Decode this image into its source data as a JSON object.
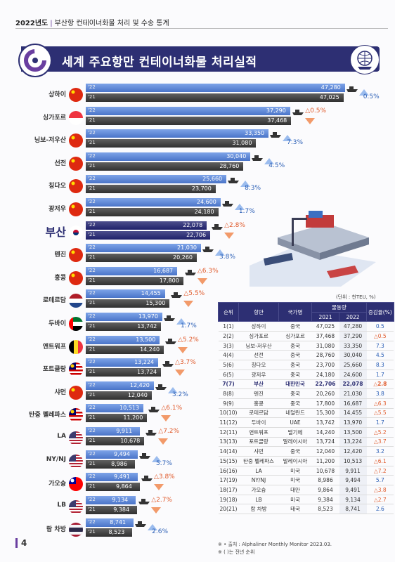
{
  "header": {
    "year": "2022년도",
    "subtitle": "부산항 컨테이너화물 처리 및 수송 통계"
  },
  "chart_data": {
    "type": "bar",
    "title": "세계 주요항만 컨테이너화물 처리실적",
    "series_labels": {
      "y22": "'22",
      "y21": "'21"
    },
    "xlim": [
      0,
      50000
    ],
    "ports": [
      {
        "name": "상하이",
        "v22": 47280,
        "v21": 47025,
        "d22": "47,280",
        "d21": "47,025",
        "change": "0.5%",
        "dir": "up",
        "flag": "cn"
      },
      {
        "name": "싱가포르",
        "v22": 37290,
        "v21": 37468,
        "d22": "37,290",
        "d21": "37,468",
        "change": "△0.5%",
        "dir": "down",
        "flag": "sg"
      },
      {
        "name": "닝보-저우산",
        "v22": 33350,
        "v21": 31080,
        "d22": "33,350",
        "d21": "31,080",
        "change": "7.3%",
        "dir": "up",
        "flag": "cn"
      },
      {
        "name": "선전",
        "v22": 30040,
        "v21": 28760,
        "d22": "30,040",
        "d21": "28,760",
        "change": "4.5%",
        "dir": "up",
        "flag": "cn"
      },
      {
        "name": "칭다오",
        "v22": 25660,
        "v21": 23700,
        "d22": "25,660",
        "d21": "23,700",
        "change": "8.3%",
        "dir": "up",
        "flag": "cn"
      },
      {
        "name": "광저우",
        "v22": 24600,
        "v21": 24180,
        "d22": "24,600",
        "d21": "24,180",
        "change": "1.7%",
        "dir": "up",
        "flag": "cn"
      },
      {
        "name": "부산",
        "v22": 22078,
        "v21": 22706,
        "d22": "22,078",
        "d21": "22,706",
        "change": "△2.8%",
        "dir": "down",
        "flag": "kr",
        "highlight": true
      },
      {
        "name": "톈진",
        "v22": 21030,
        "v21": 20260,
        "d22": "21,030",
        "d21": "20,260",
        "change": "3.8%",
        "dir": "up",
        "flag": "cn"
      },
      {
        "name": "홍콩",
        "v22": 16687,
        "v21": 17800,
        "d22": "16,687",
        "d21": "17,800",
        "change": "△6.3%",
        "dir": "down",
        "flag": "cn"
      },
      {
        "name": "로테르담",
        "v22": 14455,
        "v21": 15300,
        "d22": "14,455",
        "d21": "15,300",
        "change": "△5.5%",
        "dir": "down",
        "flag": "nl"
      },
      {
        "name": "두바이",
        "v22": 13970,
        "v21": 13742,
        "d22": "13,970",
        "d21": "13,742",
        "change": "1.7%",
        "dir": "up",
        "flag": "ae"
      },
      {
        "name": "앤트워프",
        "v22": 13500,
        "v21": 14240,
        "d22": "13,500",
        "d21": "14,240",
        "change": "△5.2%",
        "dir": "down",
        "flag": "be"
      },
      {
        "name": "포트클랑",
        "v22": 13224,
        "v21": 13724,
        "d22": "13,224",
        "d21": "13,724",
        "change": "△3.7%",
        "dir": "down",
        "flag": "my"
      },
      {
        "name": "샤먼",
        "v22": 12420,
        "v21": 12040,
        "d22": "12,420",
        "d21": "12,040",
        "change": "3.2%",
        "dir": "up",
        "flag": "cn"
      },
      {
        "name": "탄중 펠레파스",
        "v22": 10513,
        "v21": 11200,
        "d22": "10,513",
        "d21": "11,200",
        "change": "△6.1%",
        "dir": "down",
        "flag": "my"
      },
      {
        "name": "LA",
        "v22": 9911,
        "v21": 10678,
        "d22": "9,911",
        "d21": "10,678",
        "change": "△7.2%",
        "dir": "down",
        "flag": "us"
      },
      {
        "name": "NY/NJ",
        "v22": 9494,
        "v21": 8986,
        "d22": "9,494",
        "d21": "8,986",
        "change": "5.7%",
        "dir": "up",
        "flag": "us"
      },
      {
        "name": "가오슝",
        "v22": 9491,
        "v21": 9864,
        "d22": "9,491",
        "d21": "9,864",
        "change": "△3.8%",
        "dir": "down",
        "flag": "tw"
      },
      {
        "name": "LB",
        "v22": 9134,
        "v21": 9384,
        "d22": "9,134",
        "d21": "9,384",
        "change": "△2.7%",
        "dir": "down",
        "flag": "us"
      },
      {
        "name": "람 차방",
        "v22": 8741,
        "v21": 8523,
        "d22": "8,741",
        "d21": "8,523",
        "change": "2.6%",
        "dir": "up",
        "flag": "th"
      }
    ]
  },
  "table": {
    "unit": "(단위 : 천TEU, %)",
    "headers": {
      "rank": "순위",
      "port": "항만",
      "country": "국가명",
      "volume": "물동량",
      "y2021": "2021",
      "y2022": "2022",
      "rate": "증감율(%)"
    },
    "rows": [
      [
        "1(1)",
        "상하이",
        "중국",
        "47,025",
        "47,280",
        "0.5"
      ],
      [
        "2(2)",
        "싱가포르",
        "싱가포르",
        "37,468",
        "37,290",
        "△0.5"
      ],
      [
        "3(3)",
        "닝보-저우산",
        "중국",
        "31,080",
        "33,350",
        "7.3"
      ],
      [
        "4(4)",
        "선전",
        "중국",
        "28,760",
        "30,040",
        "4.5"
      ],
      [
        "5(6)",
        "칭다오",
        "중국",
        "23,700",
        "25,660",
        "8.3"
      ],
      [
        "6(5)",
        "광저우",
        "중국",
        "24,180",
        "24,600",
        "1.7"
      ],
      [
        "7(7)",
        "부산",
        "대한민국",
        "22,706",
        "22,078",
        "△2.8"
      ],
      [
        "8(8)",
        "톈진",
        "중국",
        "20,260",
        "21,030",
        "3.8"
      ],
      [
        "9(9)",
        "홍콩",
        "중국",
        "17,800",
        "16,687",
        "△6.3"
      ],
      [
        "10(10)",
        "로테르담",
        "네덜란드",
        "15,300",
        "14,455",
        "△5.5"
      ],
      [
        "11(12)",
        "두바이",
        "UAE",
        "13,742",
        "13,970",
        "1.7"
      ],
      [
        "12(11)",
        "앤트워프",
        "벨기에",
        "14,240",
        "13,500",
        "△5.2"
      ],
      [
        "13(13)",
        "포트클랑",
        "말레이시아",
        "13,724",
        "13,224",
        "△3.7"
      ],
      [
        "14(14)",
        "샤먼",
        "중국",
        "12,040",
        "12,420",
        "3.2"
      ],
      [
        "15(15)",
        "탄중 펠레파스",
        "말레이시아",
        "11,200",
        "10,513",
        "△6.1"
      ],
      [
        "16(16)",
        "LA",
        "미국",
        "10,678",
        "9,911",
        "△7.2"
      ],
      [
        "17(19)",
        "NY/NJ",
        "미국",
        "8,986",
        "9,494",
        "5.7"
      ],
      [
        "18(17)",
        "가오슝",
        "대만",
        "9,864",
        "9,491",
        "△3.8"
      ],
      [
        "19(18)",
        "LB",
        "미국",
        "9,384",
        "9,134",
        "△2.7"
      ],
      [
        "20(21)",
        "람 차방",
        "태국",
        "8,523",
        "8,741",
        "2.6"
      ]
    ],
    "notes": [
      "※ • 출처 : Alphaliner Monthly Monitor 2023.03.",
      "※ ( )는 전년 순위"
    ]
  },
  "page": {
    "number": "4"
  }
}
